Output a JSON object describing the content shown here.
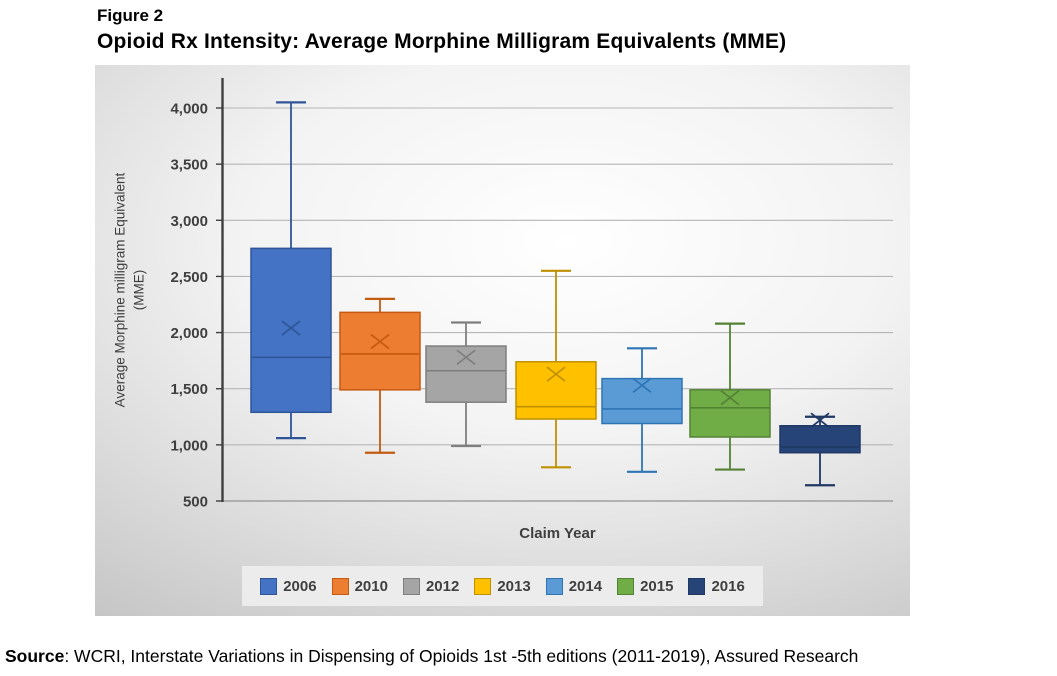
{
  "figure_label": "Figure 2",
  "title": "Opioid Rx Intensity: Average Morphine Milligram Equivalents (MME)",
  "source": {
    "label": "Source",
    "text": ": WCRI, Interstate Variations in Dispensing of Opioids 1st -5th editions (2011-2019), Assured Research"
  },
  "chart_data": {
    "type": "box",
    "title": "Opioid Rx Intensity: Average Morphine Milligram Equivalents (MME)",
    "xlabel": "Claim Year",
    "ylabel": "Average Morphine milligram Equivalent",
    "ylabel_line2": "(MME)",
    "ylim": [
      500,
      4250
    ],
    "yticks": [
      500,
      1000,
      1500,
      2000,
      2500,
      3000,
      3500,
      4000
    ],
    "grid": true,
    "legend_position": "bottom",
    "categories": [
      "2006",
      "2010",
      "2012",
      "2013",
      "2014",
      "2015",
      "2016"
    ],
    "series": [
      {
        "name": "2006",
        "color": "#4472C4",
        "border": "#2F5597",
        "whisker_low": 1060,
        "q1": 1290,
        "median": 1780,
        "mean": 2040,
        "q3": 2750,
        "whisker_high": 4050
      },
      {
        "name": "2010",
        "color": "#ED7D31",
        "border": "#C55A11",
        "whisker_low": 930,
        "q1": 1490,
        "median": 1810,
        "mean": 1920,
        "q3": 2180,
        "whisker_high": 2300
      },
      {
        "name": "2012",
        "color": "#A5A5A5",
        "border": "#7F7F7F",
        "whisker_low": 990,
        "q1": 1380,
        "median": 1660,
        "mean": 1780,
        "q3": 1880,
        "whisker_high": 2090
      },
      {
        "name": "2013",
        "color": "#FFC000",
        "border": "#BF9000",
        "whisker_low": 800,
        "q1": 1230,
        "median": 1340,
        "mean": 1630,
        "q3": 1740,
        "whisker_high": 2550
      },
      {
        "name": "2014",
        "color": "#5B9BD5",
        "border": "#2E75B6",
        "whisker_low": 760,
        "q1": 1190,
        "median": 1320,
        "mean": 1530,
        "q3": 1590,
        "whisker_high": 1860
      },
      {
        "name": "2015",
        "color": "#70AD47",
        "border": "#548235",
        "whisker_low": 780,
        "q1": 1070,
        "median": 1330,
        "mean": 1420,
        "q3": 1490,
        "whisker_high": 2080
      },
      {
        "name": "2016",
        "color": "#264478",
        "border": "#1F3864",
        "whisker_low": 640,
        "q1": 930,
        "median": 980,
        "mean": 1220,
        "q3": 1170,
        "whisker_high": 1250
      }
    ],
    "axis_colors": {
      "gridline": "#b6b6b6",
      "baseline": "#9f9f9f",
      "axis_line": "#3f3f3f",
      "tick_text": "#3f3f3f"
    }
  }
}
